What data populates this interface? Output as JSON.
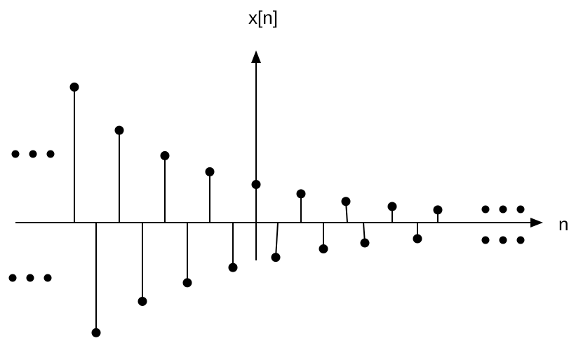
{
  "figure": {
    "y_axis_label": "x[n]",
    "x_axis_label": "n",
    "stroke_color": "#000000",
    "background_color": "#ffffff"
  },
  "stem_samples": [
    {
      "id": "s1",
      "value": 0.8
    },
    {
      "id": "s2",
      "value": -0.65
    },
    {
      "id": "s3",
      "value": 0.545
    },
    {
      "id": "s4",
      "value": -0.465
    },
    {
      "id": "s5",
      "value": 0.395
    },
    {
      "id": "s6",
      "value": -0.355
    },
    {
      "id": "s7",
      "value": 0.3
    },
    {
      "id": "s8",
      "value": -0.265
    },
    {
      "id": "s9",
      "value": 0.225
    },
    {
      "id": "s10",
      "value": -0.205
    },
    {
      "id": "s11",
      "value": 0.17
    },
    {
      "id": "s12",
      "value": -0.155
    },
    {
      "id": "s13",
      "value": 0.125
    },
    {
      "id": "s14",
      "value": -0.12
    },
    {
      "id": "s15",
      "value": 0.095
    },
    {
      "id": "s16",
      "value": -0.095
    },
    {
      "id": "s17",
      "value": 0.075
    }
  ],
  "continuation_marks": [
    {
      "id": "upper-left",
      "side": "left",
      "sign": "positive",
      "dots": 3
    },
    {
      "id": "lower-left",
      "side": "left",
      "sign": "negative",
      "dots": 3
    },
    {
      "id": "upper-right",
      "side": "right",
      "sign": "positive",
      "dots": 3
    },
    {
      "id": "lower-right",
      "side": "right",
      "sign": "negative",
      "dots": 3
    }
  ]
}
